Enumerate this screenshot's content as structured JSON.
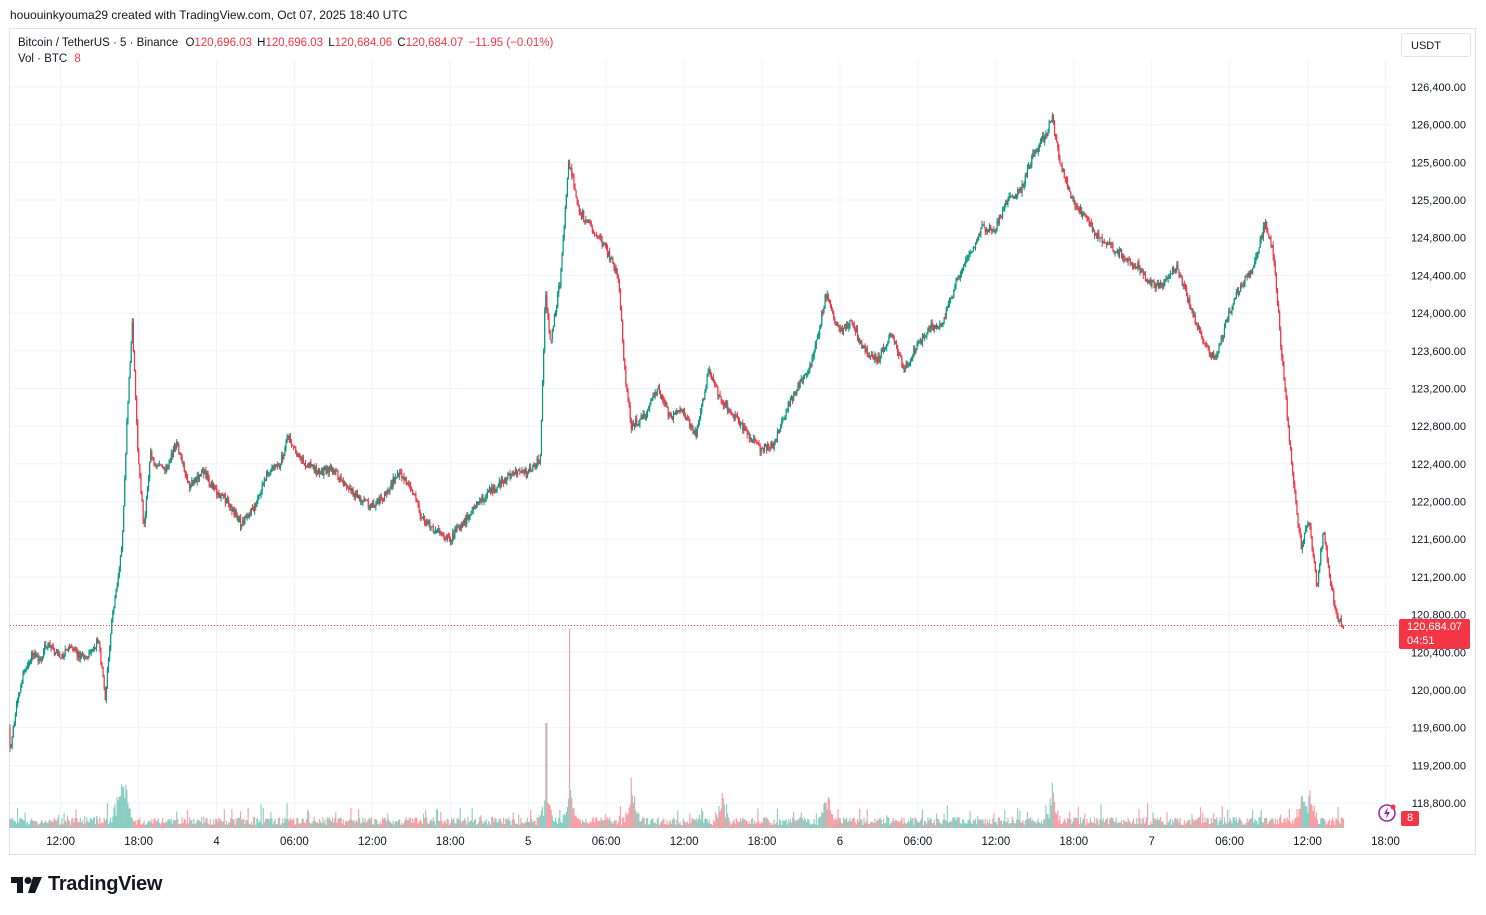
{
  "header": {
    "caption": "hououinkyouma29 created with TradingView.com, Oct 07, 2025 18:40 UTC"
  },
  "legend": {
    "symbol": "Bitcoin / TetherUS · 5 · Binance",
    "open_label": "O",
    "open": "120,696.03",
    "high_label": "H",
    "high": "120,696.03",
    "low_label": "L",
    "low": "120,684.06",
    "close_label": "C",
    "close": "120,684.07",
    "change": "−11.95 (−0.01%)",
    "volume_label": "Vol · BTC",
    "volume_value": "8"
  },
  "price_scale": {
    "currency": "USDT"
  },
  "current_price": {
    "price": "120,684.07",
    "countdown": "04:51"
  },
  "alerts": {
    "count": "8"
  },
  "brand": {
    "name": "TradingView"
  },
  "colors": {
    "up": "#089981",
    "down": "#f23645",
    "grid": "#f0f3fa",
    "text": "#131722"
  },
  "chart_data": {
    "type": "candlestick",
    "title": "Bitcoin / TetherUS · 5 · Binance",
    "y_axis": {
      "ticks": [
        "126,400.00",
        "126,000.00",
        "125,600.00",
        "125,200.00",
        "124,800.00",
        "124,400.00",
        "124,000.00",
        "123,600.00",
        "123,200.00",
        "122,800.00",
        "122,400.00",
        "122,000.00",
        "121,600.00",
        "121,200.00",
        "120,800.00",
        "120,400.00",
        "120,000.00",
        "119,600.00",
        "119,200.00",
        "118,800.00"
      ],
      "tick_values": [
        126400,
        126000,
        125600,
        125200,
        124800,
        124400,
        124000,
        123600,
        123200,
        122800,
        122400,
        122000,
        121600,
        121200,
        120800,
        120400,
        120000,
        119600,
        119200,
        118800
      ],
      "range": [
        118650,
        126850
      ],
      "position": "right"
    },
    "x_axis": {
      "ticks": [
        "12:00",
        "18:00",
        "4",
        "06:00",
        "12:00",
        "18:00",
        "5",
        "06:00",
        "12:00",
        "18:00",
        "6",
        "06:00",
        "12:00",
        "18:00",
        "7",
        "06:00",
        "12:00",
        "18:00"
      ],
      "tick_hours": [
        12,
        18,
        24,
        30,
        36,
        42,
        48,
        54,
        60,
        66,
        72,
        78,
        84,
        90,
        96,
        102,
        108,
        114
      ],
      "range_hours": [
        8.1,
        114.5
      ],
      "start": "Oct 03 08:06 UTC",
      "end": "Oct 07 18:40 UTC"
    },
    "interval": "5m",
    "price_path": [
      [
        8.1,
        119600
      ],
      [
        8.2,
        119300
      ],
      [
        8.7,
        119900
      ],
      [
        9.3,
        120200
      ],
      [
        10,
        120400
      ],
      [
        10.5,
        120300
      ],
      [
        11,
        120500
      ],
      [
        12,
        120350
      ],
      [
        13,
        120450
      ],
      [
        14,
        120300
      ],
      [
        15,
        120550
      ],
      [
        15.5,
        119900
      ],
      [
        16,
        120700
      ],
      [
        16.8,
        121500
      ],
      [
        17.3,
        123200
      ],
      [
        17.6,
        123900
      ],
      [
        18,
        122600
      ],
      [
        18.5,
        121700
      ],
      [
        19,
        122500
      ],
      [
        20,
        122300
      ],
      [
        21,
        122600
      ],
      [
        22,
        122150
      ],
      [
        23,
        122350
      ],
      [
        24,
        122100
      ],
      [
        25,
        122000
      ],
      [
        26,
        121750
      ],
      [
        27,
        121950
      ],
      [
        28,
        122300
      ],
      [
        29,
        122400
      ],
      [
        29.6,
        122700
      ],
      [
        30,
        122550
      ],
      [
        31,
        122400
      ],
      [
        32,
        122300
      ],
      [
        33,
        122350
      ],
      [
        34,
        122150
      ],
      [
        35,
        122050
      ],
      [
        36,
        121950
      ],
      [
        37,
        122050
      ],
      [
        38,
        122300
      ],
      [
        39,
        122150
      ],
      [
        40,
        121800
      ],
      [
        41,
        121700
      ],
      [
        42,
        121600
      ],
      [
        43,
        121750
      ],
      [
        44,
        121950
      ],
      [
        45,
        122100
      ],
      [
        46,
        122200
      ],
      [
        47,
        122300
      ],
      [
        48,
        122300
      ],
      [
        49,
        122450
      ],
      [
        49.4,
        124200
      ],
      [
        49.8,
        123700
      ],
      [
        50.5,
        124300
      ],
      [
        51.2,
        125600
      ],
      [
        52,
        125100
      ],
      [
        53,
        124900
      ],
      [
        54,
        124700
      ],
      [
        55,
        124400
      ],
      [
        55.5,
        123400
      ],
      [
        56,
        122800
      ],
      [
        57,
        122900
      ],
      [
        58,
        123200
      ],
      [
        59,
        122900
      ],
      [
        60,
        122950
      ],
      [
        61,
        122700
      ],
      [
        62,
        123400
      ],
      [
        63,
        123050
      ],
      [
        64,
        122900
      ],
      [
        65,
        122700
      ],
      [
        66,
        122550
      ],
      [
        67,
        122600
      ],
      [
        68,
        123000
      ],
      [
        69,
        123250
      ],
      [
        70,
        123500
      ],
      [
        71,
        124200
      ],
      [
        72,
        123800
      ],
      [
        73,
        123900
      ],
      [
        74,
        123600
      ],
      [
        75,
        123500
      ],
      [
        76,
        123800
      ],
      [
        77,
        123400
      ],
      [
        78,
        123650
      ],
      [
        79,
        123850
      ],
      [
        80,
        123900
      ],
      [
        81,
        124300
      ],
      [
        82,
        124600
      ],
      [
        83,
        124900
      ],
      [
        84,
        124900
      ],
      [
        85,
        125200
      ],
      [
        86,
        125300
      ],
      [
        87,
        125700
      ],
      [
        88,
        125900
      ],
      [
        88.4,
        126100
      ],
      [
        89,
        125600
      ],
      [
        90,
        125200
      ],
      [
        91,
        125000
      ],
      [
        92,
        124800
      ],
      [
        93,
        124700
      ],
      [
        94,
        124600
      ],
      [
        95,
        124500
      ],
      [
        96,
        124300
      ],
      [
        97,
        124300
      ],
      [
        98,
        124500
      ],
      [
        99,
        124100
      ],
      [
        100,
        123700
      ],
      [
        101,
        123500
      ],
      [
        102,
        124000
      ],
      [
        103,
        124300
      ],
      [
        104,
        124500
      ],
      [
        104.8,
        124950
      ],
      [
        105.5,
        124600
      ],
      [
        106,
        123700
      ],
      [
        106.6,
        122800
      ],
      [
        107,
        122200
      ],
      [
        107.6,
        121500
      ],
      [
        108.2,
        121800
      ],
      [
        108.8,
        121100
      ],
      [
        109.3,
        121700
      ],
      [
        109.8,
        121200
      ],
      [
        110.3,
        120800
      ],
      [
        110.8,
        120680
      ]
    ],
    "volume_spikes_hours": [
      16.5,
      17,
      49.4,
      51.2,
      56,
      63,
      71,
      88.4,
      107.5,
      108.2
    ],
    "last_price": 120684.07
  }
}
